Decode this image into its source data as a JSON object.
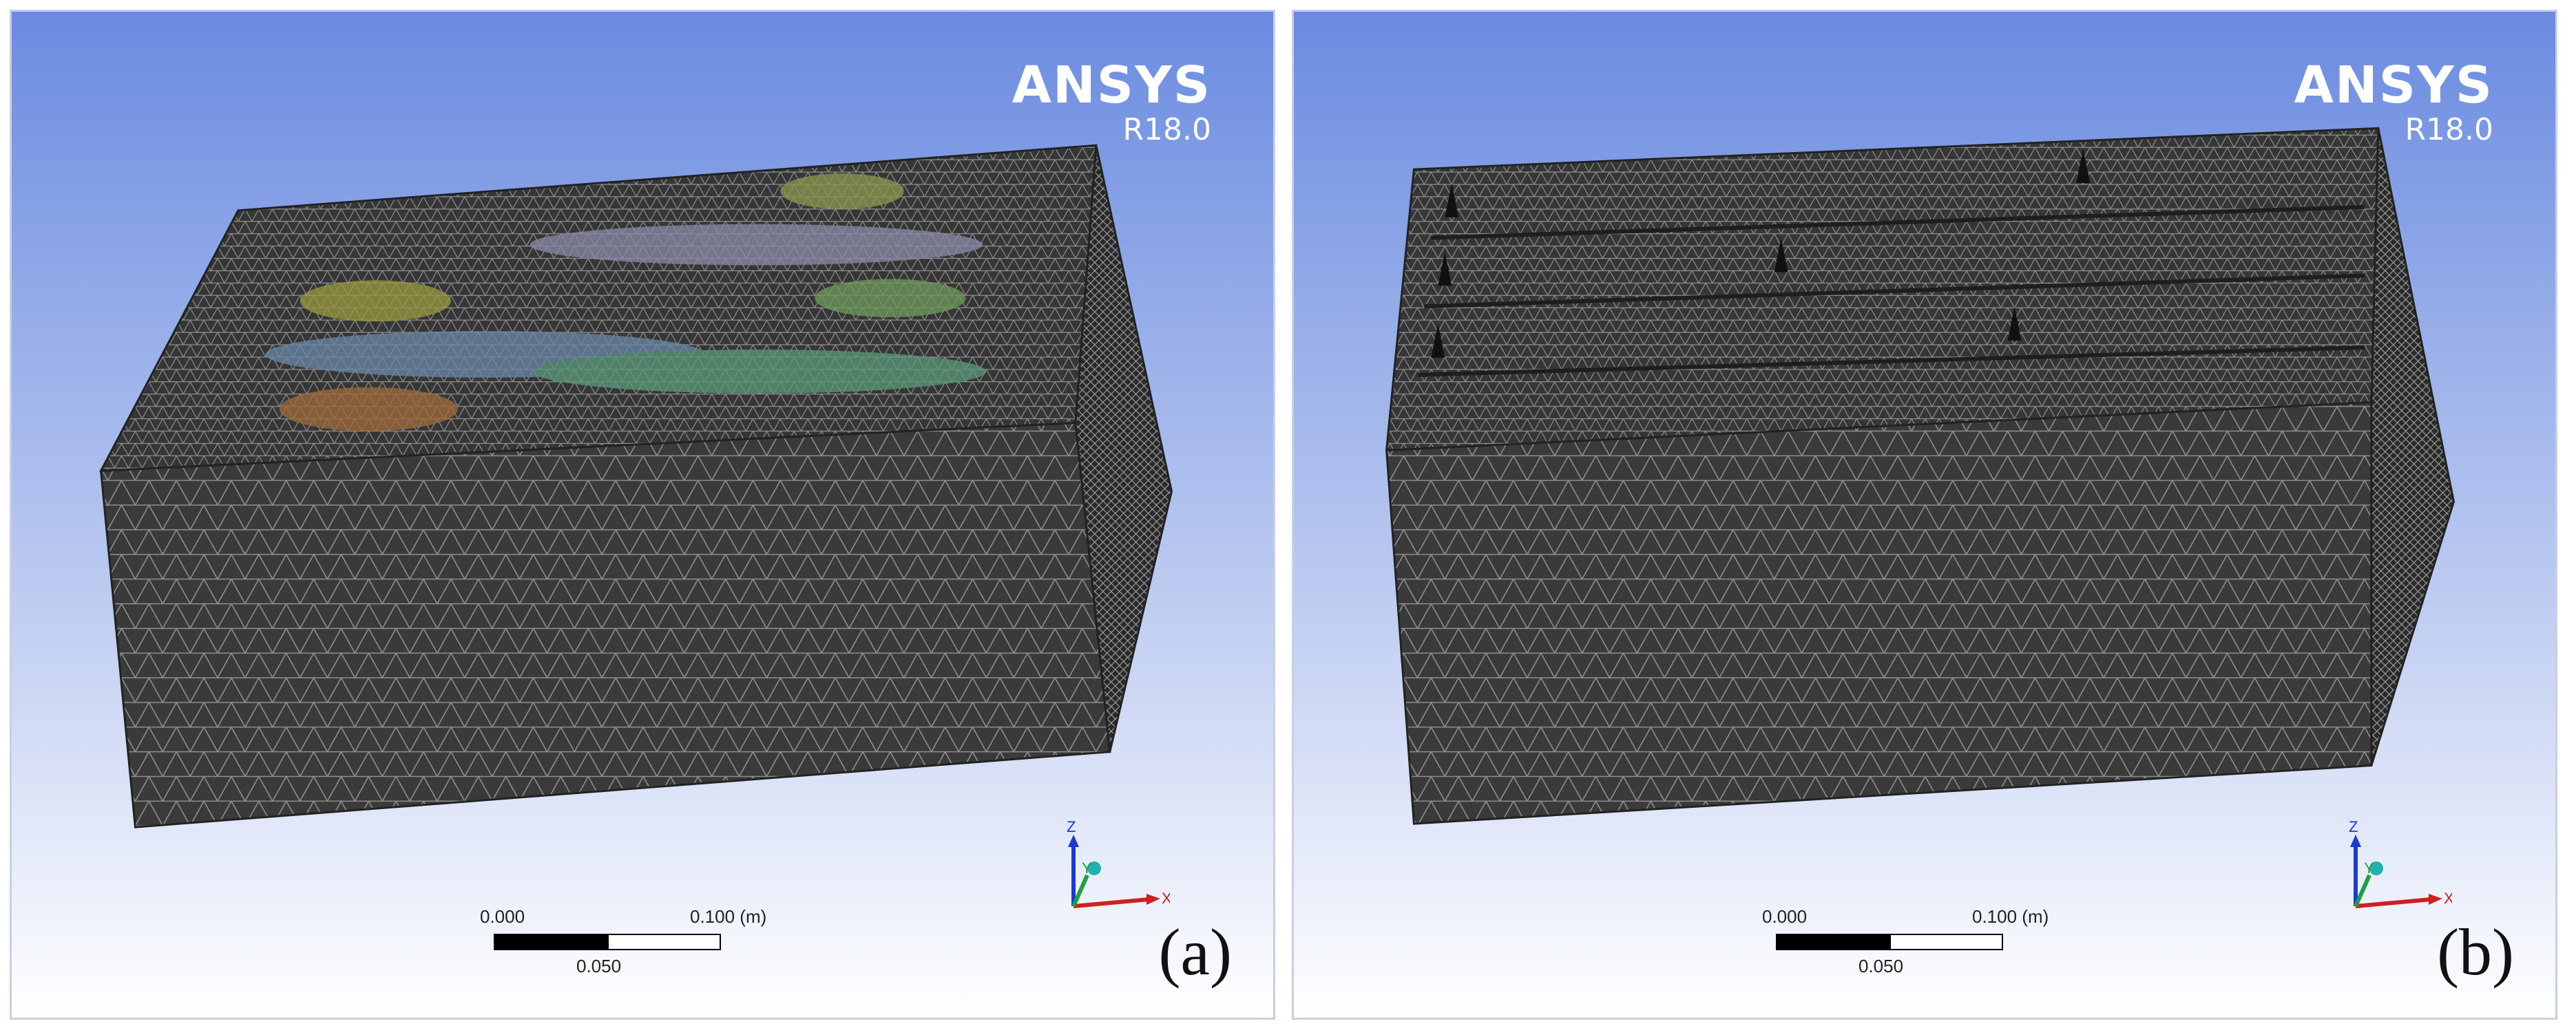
{
  "panels": [
    {
      "brand": {
        "name": "ANSYS",
        "version": "R18.0"
      },
      "scale": {
        "start": "0.000",
        "end": "0.100 (m)",
        "mid": "0.050"
      },
      "axes": {
        "z": "Z",
        "y": "Y",
        "x": "X"
      },
      "label": "(a)"
    },
    {
      "brand": {
        "name": "ANSYS",
        "version": "R18.0"
      },
      "scale": {
        "start": "0.000",
        "end": "0.100 (m)",
        "mid": "0.050"
      },
      "axes": {
        "z": "Z",
        "y": "Y",
        "x": "X"
      },
      "label": "(b)"
    }
  ],
  "colors": {
    "background_top": "#6f8fe0",
    "background_bottom": "#ffffff",
    "mesh_fill": "#3b3b3b",
    "mesh_line": "#8a8a8a"
  }
}
